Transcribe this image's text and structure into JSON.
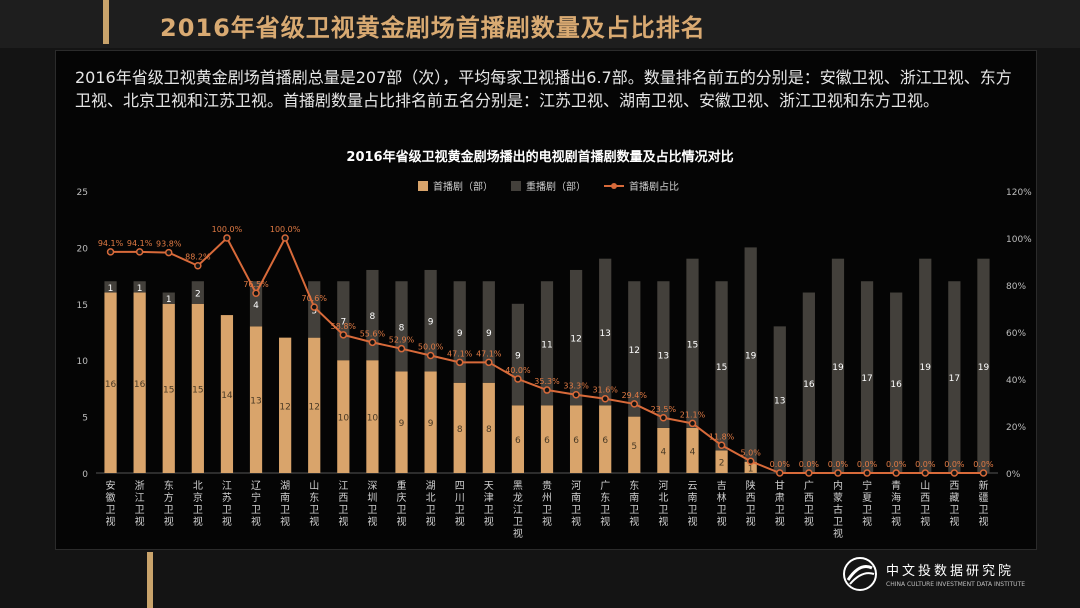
{
  "header": {
    "title": "2016年省级卫视黄金剧场首播剧数量及占比排名"
  },
  "summary": "2016年省级卫视黄金剧场首播剧总量是207部（次），平均每家卫视播出6.7部。数量排名前五的分别是：安徽卫视、浙江卫视、东方卫视、北京卫视和江苏卫视。首播剧数量占比排名前五名分别是：江苏卫视、湖南卫视、安徽卫视、浙江卫视和东方卫视。",
  "logo": {
    "name": "中文投数据研究院",
    "subtitle": "CHINA CULTURE INVESTMENT DATA INSTITUTE"
  },
  "colors": {
    "premiere": "#d9a46b",
    "rerun": "#43403b",
    "ratio": "#d86a3a",
    "grid": "#2a2a2a"
  },
  "chart_data": {
    "type": "bar",
    "stacked": true,
    "title": "2016年省级卫视黄金剧场播出的电视剧首播剧数量及占比情况对比",
    "legend_position": "top",
    "categories": [
      "安徽卫视",
      "浙江卫视",
      "东方卫视",
      "北京卫视",
      "江苏卫视",
      "辽宁卫视",
      "湖南卫视",
      "山东卫视",
      "江西卫视",
      "深圳卫视",
      "重庆卫视",
      "湖北卫视",
      "四川卫视",
      "天津卫视",
      "黑龙江卫视",
      "贵州卫视",
      "河南卫视",
      "广东卫视",
      "东南卫视",
      "河北卫视",
      "云南卫视",
      "吉林卫视",
      "陕西卫视",
      "甘肃卫视",
      "广西卫视",
      "内蒙古卫视",
      "宁夏卫视",
      "青海卫视",
      "山西卫视",
      "西藏卫视",
      "新疆卫视"
    ],
    "series": [
      {
        "name": "首播剧（部）",
        "axis": "left",
        "values": [
          16,
          16,
          15,
          15,
          14,
          13,
          12,
          12,
          10,
          10,
          9,
          9,
          8,
          8,
          6,
          6,
          6,
          6,
          5,
          4,
          4,
          2,
          1,
          0,
          0,
          0,
          0,
          0,
          0,
          0,
          0
        ]
      },
      {
        "name": "重播剧（部）",
        "axis": "left",
        "values": [
          1,
          1,
          1,
          2,
          0,
          4,
          0,
          5,
          7,
          8,
          8,
          9,
          9,
          9,
          9,
          11,
          12,
          13,
          12,
          13,
          15,
          15,
          19,
          13,
          16,
          19,
          17,
          16,
          19,
          17,
          19
        ]
      },
      {
        "name": "首播剧占比",
        "type": "line",
        "axis": "right",
        "values": [
          94.1,
          94.1,
          93.8,
          88.2,
          100.0,
          76.5,
          100.0,
          70.6,
          58.8,
          55.6,
          52.9,
          50.0,
          47.1,
          47.1,
          40.0,
          35.3,
          33.3,
          31.6,
          29.4,
          23.5,
          21.1,
          11.8,
          5.0,
          0,
          0,
          0,
          0,
          0,
          0,
          0,
          0
        ],
        "labels": [
          "94.1%",
          "94.1%",
          "93.8%",
          "88.2%",
          "100.0%",
          "76.5%",
          "100.0%",
          "70.6%",
          "58.8%",
          "55.6%",
          "52.9%",
          "50.0%",
          "47.1%",
          "47.1%",
          "40.0%",
          "35.3%",
          "33.3%",
          "31.6%",
          "29.4%",
          "23.5%",
          "21.1%",
          "11.8%",
          "5.0%",
          "0.0%",
          "0.0%",
          "0.0%",
          "0.0%",
          "0.0%",
          "0.0%",
          "0.0%",
          "0.0%"
        ]
      }
    ],
    "y_left": {
      "ylim": [
        0,
        25
      ],
      "ticks": [
        "0",
        "5",
        "10",
        "15",
        "20",
        "25"
      ]
    },
    "y_right": {
      "ylim": [
        0,
        120
      ],
      "ticks": [
        "0%",
        "20%",
        "40%",
        "60%",
        "80%",
        "100%",
        "120%"
      ]
    },
    "grid": false
  }
}
